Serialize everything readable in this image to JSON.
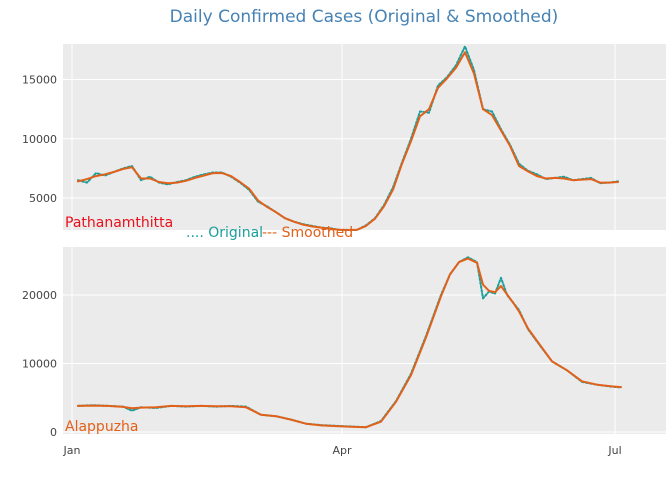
{
  "title": "Daily Confirmed Cases (Original & Smoothed)",
  "colors": {
    "original": "#1b9e9a",
    "smoothed": "#e2611a",
    "panel_bg": "#ebebeb",
    "grid": "#ffffff",
    "title": "#4682b4",
    "axis_text": "#444444"
  },
  "legend": [
    {
      "text": ".... Original",
      "color": "#1b9e9a"
    },
    {
      "text": "--- Smoothed",
      "color": "#e2611a"
    }
  ],
  "chart_data": [
    {
      "type": "line",
      "panel_label": "Pathanamthitta",
      "panel_label_color": "#e8111b",
      "ylim": [
        2300,
        18000
      ],
      "yticks": [
        5000,
        10000,
        15000
      ],
      "ytick_labels": [
        "5000",
        "10000",
        "15000"
      ],
      "xticks": [
        "2021-01-01",
        "2021-04-01",
        "2021-07-01"
      ],
      "xtick_labels": [
        "Jan",
        "Apr",
        "Jul"
      ],
      "grid": true,
      "series": [
        {
          "name": "Original",
          "style": "dotted",
          "x": [
            "2021-01-03",
            "2021-01-06",
            "2021-01-09",
            "2021-01-12",
            "2021-01-15",
            "2021-01-18",
            "2021-01-21",
            "2021-01-24",
            "2021-01-27",
            "2021-01-30",
            "2021-02-02",
            "2021-02-05",
            "2021-02-08",
            "2021-02-11",
            "2021-02-14",
            "2021-02-17",
            "2021-02-20",
            "2021-02-23",
            "2021-02-26",
            "2021-03-01",
            "2021-03-04",
            "2021-03-07",
            "2021-03-10",
            "2021-03-13",
            "2021-03-16",
            "2021-03-19",
            "2021-03-22",
            "2021-03-25",
            "2021-03-28",
            "2021-03-31",
            "2021-04-03",
            "2021-04-06",
            "2021-04-09",
            "2021-04-12",
            "2021-04-15",
            "2021-04-18",
            "2021-04-21",
            "2021-04-24",
            "2021-04-27",
            "2021-04-30",
            "2021-05-03",
            "2021-05-06",
            "2021-05-09",
            "2021-05-12",
            "2021-05-15",
            "2021-05-18",
            "2021-05-21",
            "2021-05-24",
            "2021-05-27",
            "2021-05-30",
            "2021-06-02",
            "2021-06-05",
            "2021-06-08",
            "2021-06-11",
            "2021-06-14",
            "2021-06-17",
            "2021-06-20",
            "2021-06-23",
            "2021-06-26",
            "2021-06-29",
            "2021-07-02"
          ],
          "values": [
            6500,
            6300,
            7100,
            6900,
            7200,
            7500,
            7700,
            6500,
            6800,
            6300,
            6150,
            6350,
            6500,
            6800,
            7000,
            7150,
            7150,
            6800,
            6300,
            5700,
            4700,
            4300,
            3800,
            3300,
            3000,
            2800,
            2650,
            2500,
            2450,
            2320,
            2310,
            2300,
            2700,
            3300,
            4400,
            5900,
            8000,
            10000,
            12300,
            12200,
            14500,
            15200,
            16200,
            17800,
            15800,
            12500,
            12300,
            10800,
            9500,
            7900,
            7300,
            7000,
            6600,
            6700,
            6800,
            6500,
            6600,
            6700,
            6250,
            6300,
            6400
          ]
        },
        {
          "name": "Smoothed",
          "style": "dashed",
          "x": [
            "2021-01-03",
            "2021-01-06",
            "2021-01-09",
            "2021-01-12",
            "2021-01-15",
            "2021-01-18",
            "2021-01-21",
            "2021-01-24",
            "2021-01-27",
            "2021-01-30",
            "2021-02-02",
            "2021-02-05",
            "2021-02-08",
            "2021-02-11",
            "2021-02-14",
            "2021-02-17",
            "2021-02-20",
            "2021-02-23",
            "2021-02-26",
            "2021-03-01",
            "2021-03-04",
            "2021-03-07",
            "2021-03-10",
            "2021-03-13",
            "2021-03-16",
            "2021-03-19",
            "2021-03-22",
            "2021-03-25",
            "2021-03-28",
            "2021-03-31",
            "2021-04-03",
            "2021-04-06",
            "2021-04-09",
            "2021-04-12",
            "2021-04-15",
            "2021-04-18",
            "2021-04-21",
            "2021-04-24",
            "2021-04-27",
            "2021-04-30",
            "2021-05-03",
            "2021-05-06",
            "2021-05-09",
            "2021-05-12",
            "2021-05-15",
            "2021-05-18",
            "2021-05-21",
            "2021-05-24",
            "2021-05-27",
            "2021-05-30",
            "2021-06-02",
            "2021-06-05",
            "2021-06-08",
            "2021-06-11",
            "2021-06-14",
            "2021-06-17",
            "2021-06-20",
            "2021-06-23",
            "2021-06-26",
            "2021-06-29",
            "2021-07-02"
          ],
          "values": [
            6400,
            6600,
            6850,
            7000,
            7200,
            7450,
            7600,
            6650,
            6650,
            6350,
            6250,
            6300,
            6450,
            6700,
            6900,
            7100,
            7100,
            6850,
            6350,
            5800,
            4800,
            4250,
            3800,
            3300,
            3000,
            2750,
            2600,
            2500,
            2400,
            2320,
            2300,
            2320,
            2650,
            3250,
            4300,
            5700,
            7900,
            9800,
            11900,
            12500,
            14300,
            15100,
            16000,
            17300,
            15500,
            12500,
            12000,
            10700,
            9400,
            7700,
            7250,
            6850,
            6650,
            6700,
            6650,
            6500,
            6550,
            6600,
            6300,
            6300,
            6350
          ]
        }
      ]
    },
    {
      "type": "line",
      "panel_label": "Alappuzha",
      "panel_label_color": "#e2611a",
      "ylim": [
        -300,
        27000
      ],
      "yticks": [
        0,
        10000,
        20000
      ],
      "ytick_labels": [
        "0",
        "10000",
        "20000"
      ],
      "xticks": [
        "2021-01-01",
        "2021-04-01",
        "2021-07-01"
      ],
      "xtick_labels": [
        "Jan",
        "Apr",
        "Jul"
      ],
      "grid": true,
      "series": [
        {
          "name": "Original",
          "style": "dotted",
          "x": [
            "2021-01-03",
            "2021-01-08",
            "2021-01-13",
            "2021-01-18",
            "2021-01-21",
            "2021-01-24",
            "2021-01-29",
            "2021-02-03",
            "2021-02-08",
            "2021-02-13",
            "2021-02-18",
            "2021-02-23",
            "2021-02-28",
            "2021-03-05",
            "2021-03-10",
            "2021-03-15",
            "2021-03-20",
            "2021-03-25",
            "2021-03-30",
            "2021-04-04",
            "2021-04-09",
            "2021-04-14",
            "2021-04-19",
            "2021-04-24",
            "2021-04-29",
            "2021-05-04",
            "2021-05-07",
            "2021-05-10",
            "2021-05-13",
            "2021-05-16",
            "2021-05-18",
            "2021-05-20",
            "2021-05-22",
            "2021-05-24",
            "2021-05-26",
            "2021-05-28",
            "2021-05-30",
            "2021-06-02",
            "2021-06-06",
            "2021-06-10",
            "2021-06-15",
            "2021-06-20",
            "2021-06-25",
            "2021-06-30",
            "2021-07-03"
          ],
          "values": [
            3800,
            3900,
            3800,
            3700,
            3100,
            3600,
            3500,
            3800,
            3700,
            3800,
            3700,
            3800,
            3700,
            2500,
            2300,
            1800,
            1200,
            1000,
            900,
            800,
            700,
            1600,
            4500,
            8500,
            14000,
            20000,
            23000,
            24800,
            25500,
            24800,
            19500,
            20500,
            20200,
            22500,
            20000,
            18900,
            17800,
            15000,
            12600,
            10300,
            9000,
            7300,
            6900,
            6600,
            6500
          ]
        },
        {
          "name": "Smoothed",
          "style": "dashed",
          "x": [
            "2021-01-03",
            "2021-01-08",
            "2021-01-13",
            "2021-01-18",
            "2021-01-21",
            "2021-01-24",
            "2021-01-29",
            "2021-02-03",
            "2021-02-08",
            "2021-02-13",
            "2021-02-18",
            "2021-02-23",
            "2021-02-28",
            "2021-03-05",
            "2021-03-10",
            "2021-03-15",
            "2021-03-20",
            "2021-03-25",
            "2021-03-30",
            "2021-04-04",
            "2021-04-09",
            "2021-04-14",
            "2021-04-19",
            "2021-04-24",
            "2021-04-29",
            "2021-05-04",
            "2021-05-07",
            "2021-05-10",
            "2021-05-13",
            "2021-05-16",
            "2021-05-18",
            "2021-05-20",
            "2021-05-22",
            "2021-05-24",
            "2021-05-26",
            "2021-05-28",
            "2021-05-30",
            "2021-06-02",
            "2021-06-06",
            "2021-06-10",
            "2021-06-15",
            "2021-06-20",
            "2021-06-25",
            "2021-06-30",
            "2021-07-03"
          ],
          "values": [
            3800,
            3850,
            3800,
            3650,
            3450,
            3550,
            3600,
            3800,
            3750,
            3800,
            3750,
            3750,
            3600,
            2500,
            2300,
            1800,
            1200,
            950,
            850,
            750,
            700,
            1500,
            4400,
            8300,
            13800,
            19800,
            23000,
            24800,
            25300,
            24700,
            21500,
            20600,
            20400,
            21300,
            20100,
            18900,
            17600,
            15100,
            12700,
            10300,
            9000,
            7400,
            6900,
            6650,
            6550
          ]
        }
      ]
    }
  ]
}
